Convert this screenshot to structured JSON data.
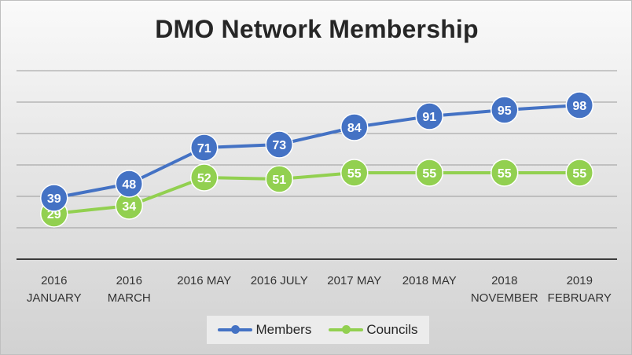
{
  "chart_data": {
    "type": "line",
    "title": "DMO Network Membership",
    "categories": [
      [
        "2016",
        "JANUARY"
      ],
      [
        "2016",
        "MARCH"
      ],
      [
        "2016 MAY"
      ],
      [
        "2016 JULY"
      ],
      [
        "2017 MAY"
      ],
      [
        "2018 MAY"
      ],
      [
        "2018",
        "NOVEMBER"
      ],
      [
        "2019",
        "FEBRUARY"
      ]
    ],
    "series": [
      {
        "name": "Members",
        "values": [
          39,
          48,
          71,
          73,
          84,
          91,
          95,
          98
        ],
        "color": "#4472C4"
      },
      {
        "name": "Councils",
        "values": [
          29,
          34,
          52,
          51,
          55,
          55,
          55,
          55
        ],
        "color": "#92D050"
      }
    ],
    "ylim": [
      0,
      120
    ],
    "grid": true,
    "data_labels": true,
    "legend": "bottom"
  }
}
